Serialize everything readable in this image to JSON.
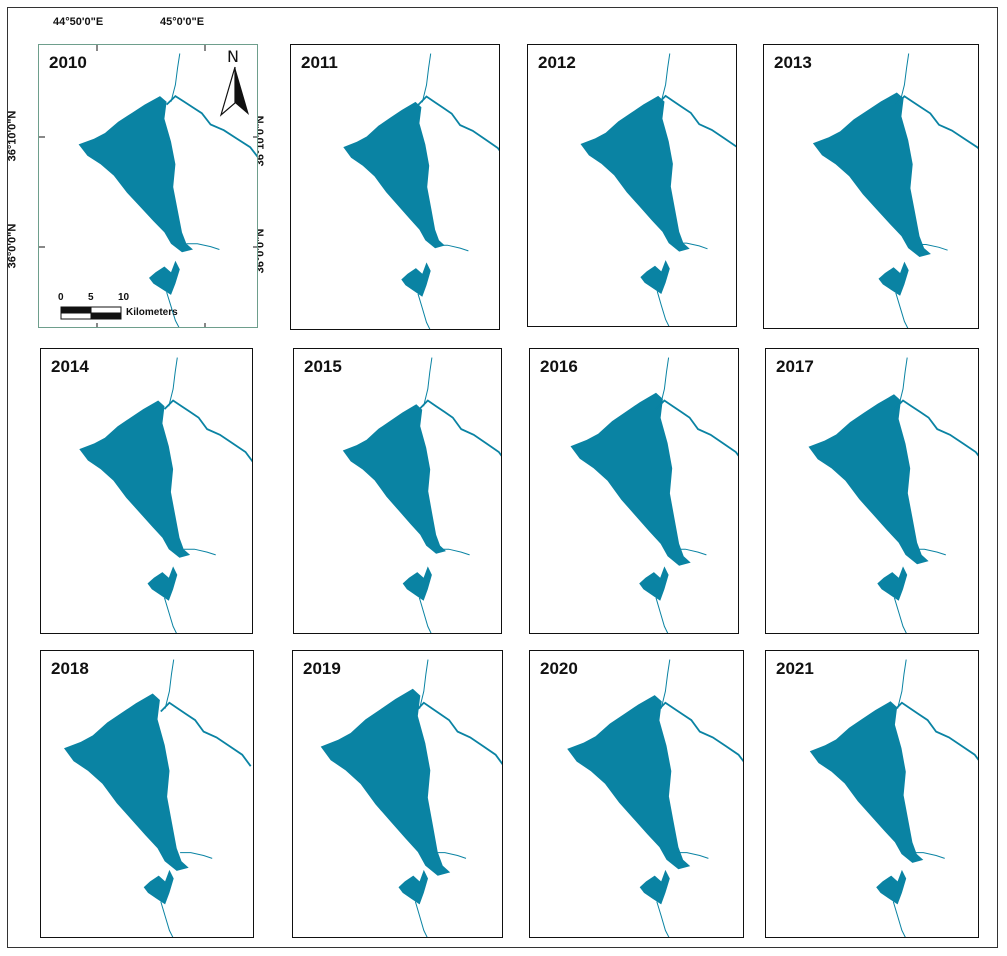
{
  "panels": [
    {
      "year": "2010"
    },
    {
      "year": "2011"
    },
    {
      "year": "2012"
    },
    {
      "year": "2013"
    },
    {
      "year": "2014"
    },
    {
      "year": "2015"
    },
    {
      "year": "2016"
    },
    {
      "year": "2017"
    },
    {
      "year": "2018"
    },
    {
      "year": "2019"
    },
    {
      "year": "2020"
    },
    {
      "year": "2021"
    }
  ],
  "coords": {
    "lon1": "44°50'0\"E",
    "lon2": "45°0'0\"E",
    "lat1": "36°10'0\"N",
    "lat2": "36°0'0\"N"
  },
  "scalebar": {
    "ticks": [
      "0",
      "5",
      "10"
    ],
    "unit": "Kilometers"
  },
  "north_arrow": "N",
  "colors": {
    "water": "#0a83a3",
    "frame_first": "#6e9e8c",
    "frame": "#111111"
  }
}
